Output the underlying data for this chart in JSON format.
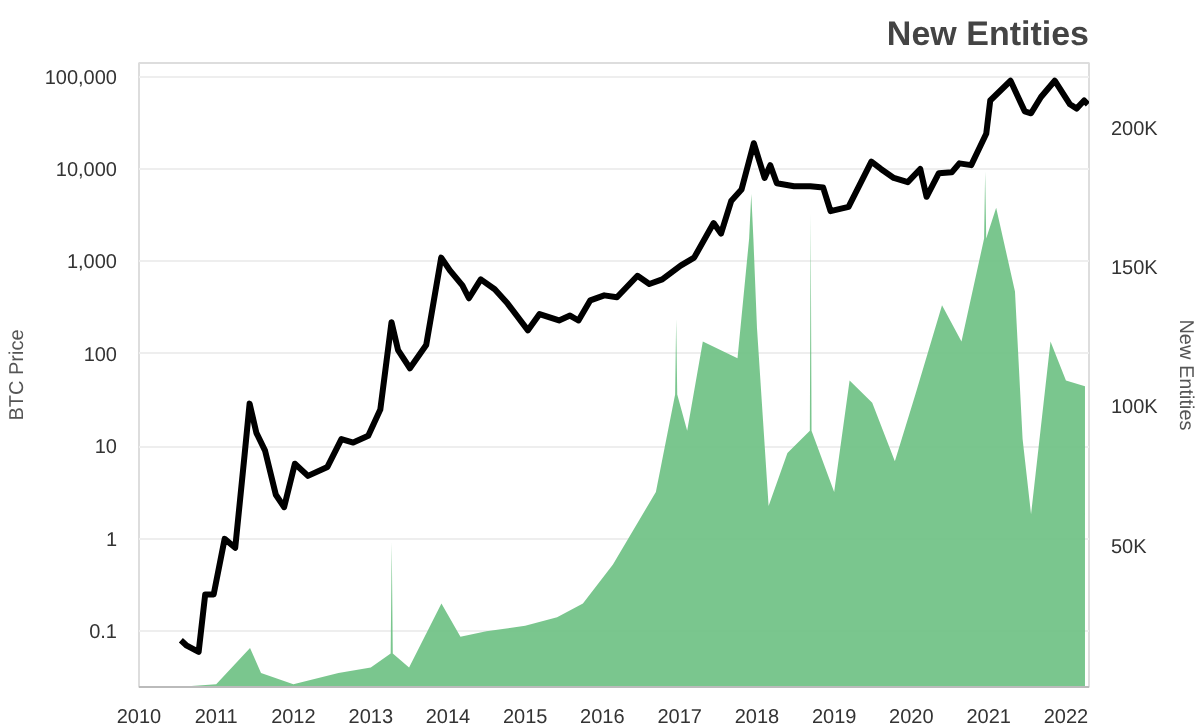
{
  "chart_data": {
    "type": "line",
    "title": "New Entities",
    "ylabel": "BTC Price",
    "y2label": "New Entities",
    "log": "y",
    "grid": "y",
    "xlim": [
      "2010-01-01",
      "2022-04-20"
    ],
    "xticks": [
      "2010",
      "2011",
      "2012",
      "2013",
      "2014",
      "2015",
      "2016",
      "2017",
      "2018",
      "2019",
      "2020",
      "2021",
      "2022"
    ],
    "ylim": [
      0.025,
      140000
    ],
    "yticks": [
      0.1,
      1,
      10,
      100,
      {
        "value": 1000,
        "label": "1,000"
      },
      {
        "value": 10000,
        "label": "10,000"
      },
      {
        "value": 100000,
        "label": "100,000"
      }
    ],
    "y2lim": [
      0,
      224000
    ],
    "y2ticks": [
      {
        "value": 50000,
        "label": "50K"
      },
      {
        "value": 100000,
        "label": "100K"
      },
      {
        "value": 150000,
        "label": "150K"
      },
      {
        "value": 200000,
        "label": "200K"
      }
    ],
    "series": [
      {
        "type": "area",
        "axis": "y2",
        "color": "#6cc082",
        "x": [
          "2010-07-01",
          "2011-01-01",
          "2011-06-10",
          "2011-08-01",
          "2012-01-01",
          "2012-08-01",
          "2013-01-01",
          "2013-04-05",
          "2013-04-10",
          "2013-04-15",
          "2013-07-01",
          "2013-12-01",
          "2014-03-01",
          "2014-07-01",
          "2015-01-01",
          "2015-06-01",
          "2015-10-01",
          "2016-02-20",
          "2016-09-10",
          "2016-12-10",
          "2016-12-15",
          "2016-12-20",
          "2017-02-05",
          "2017-04-20",
          "2017-10-01",
          "2017-11-25",
          "2017-12-05",
          "2017-12-15",
          "2018-01-01",
          "2018-02-25",
          "2018-05-25",
          "2018-09-08",
          "2018-09-12",
          "2018-09-16",
          "2019-01-01",
          "2019-03-15",
          "2019-06-30",
          "2019-10-15",
          "2020-01-20",
          "2020-05-25",
          "2020-08-25",
          "2020-12-10",
          "2020-12-15",
          "2020-12-20",
          "2021-02-05",
          "2021-05-05",
          "2021-06-10",
          "2021-07-20",
          "2021-10-20",
          "2022-01-01",
          "2022-04-01"
        ],
        "values": [
          0,
          1000,
          14000,
          5000,
          1000,
          5000,
          7000,
          12000,
          52000,
          12000,
          7000,
          30000,
          18000,
          20000,
          22000,
          25000,
          30000,
          44000,
          70000,
          105000,
          132000,
          105000,
          92000,
          124000,
          118000,
          161000,
          177000,
          161000,
          129000,
          65000,
          84000,
          92000,
          170000,
          92000,
          70000,
          110000,
          102000,
          81000,
          105000,
          137000,
          124000,
          161000,
          185000,
          161000,
          172000,
          142000,
          89000,
          62000,
          124000,
          110000,
          108000
        ]
      },
      {
        "color": "#000000",
        "x": [
          "2010-07-18",
          "2010-08-15",
          "2010-10-10",
          "2010-11-10",
          "2010-12-20",
          "2011-02-10",
          "2011-04-01",
          "2011-05-15",
          "2011-06-08",
          "2011-07-10",
          "2011-08-20",
          "2011-10-10",
          "2011-11-18",
          "2012-01-08",
          "2012-03-10",
          "2012-06-10",
          "2012-08-15",
          "2012-10-10",
          "2012-12-20",
          "2013-02-15",
          "2013-04-09",
          "2013-05-10",
          "2013-07-05",
          "2013-09-20",
          "2013-11-30",
          "2014-01-10",
          "2014-03-10",
          "2014-04-10",
          "2014-06-05",
          "2014-08-10",
          "2014-10-10",
          "2015-01-14",
          "2015-03-10",
          "2015-06-10",
          "2015-08-01",
          "2015-09-10",
          "2015-11-05",
          "2016-01-10",
          "2016-03-10",
          "2016-06-15",
          "2016-08-10",
          "2016-10-10",
          "2017-01-05",
          "2017-03-10",
          "2017-06-10",
          "2017-07-15",
          "2017-09-01",
          "2017-10-20",
          "2017-12-17",
          "2018-02-06",
          "2018-03-05",
          "2018-04-05",
          "2018-06-25",
          "2018-09-10",
          "2018-11-10",
          "2018-12-15",
          "2019-03-10",
          "2019-06-26",
          "2019-08-10",
          "2019-10-10",
          "2019-12-15",
          "2020-02-12",
          "2020-03-13",
          "2020-05-10",
          "2020-07-10",
          "2020-08-15",
          "2020-10-10",
          "2020-12-20",
          "2021-01-08",
          "2021-04-14",
          "2021-06-20",
          "2021-07-20",
          "2021-09-05",
          "2021-11-09",
          "2022-01-20",
          "2022-02-20",
          "2022-03-28",
          "2022-04-15"
        ],
        "values": [
          0.08,
          0.07,
          0.06,
          0.25,
          0.25,
          1.0,
          0.8,
          8,
          29,
          14,
          9,
          3,
          2.2,
          6.5,
          4.8,
          6,
          12,
          11,
          13,
          25,
          220,
          110,
          70,
          125,
          1100,
          800,
          550,
          400,
          640,
          500,
          350,
          180,
          270,
          230,
          260,
          230,
          380,
          430,
          410,
          700,
          570,
          640,
          900,
          1100,
          2600,
          2000,
          4500,
          6000,
          19000,
          8000,
          11000,
          7000,
          6500,
          6500,
          6300,
          3500,
          3900,
          12000,
          10000,
          8000,
          7200,
          10000,
          5000,
          9000,
          9200,
          11500,
          11000,
          24000,
          55000,
          90000,
          42000,
          40000,
          60000,
          90000,
          50000,
          45000,
          55000,
          50000
        ]
      }
    ]
  }
}
